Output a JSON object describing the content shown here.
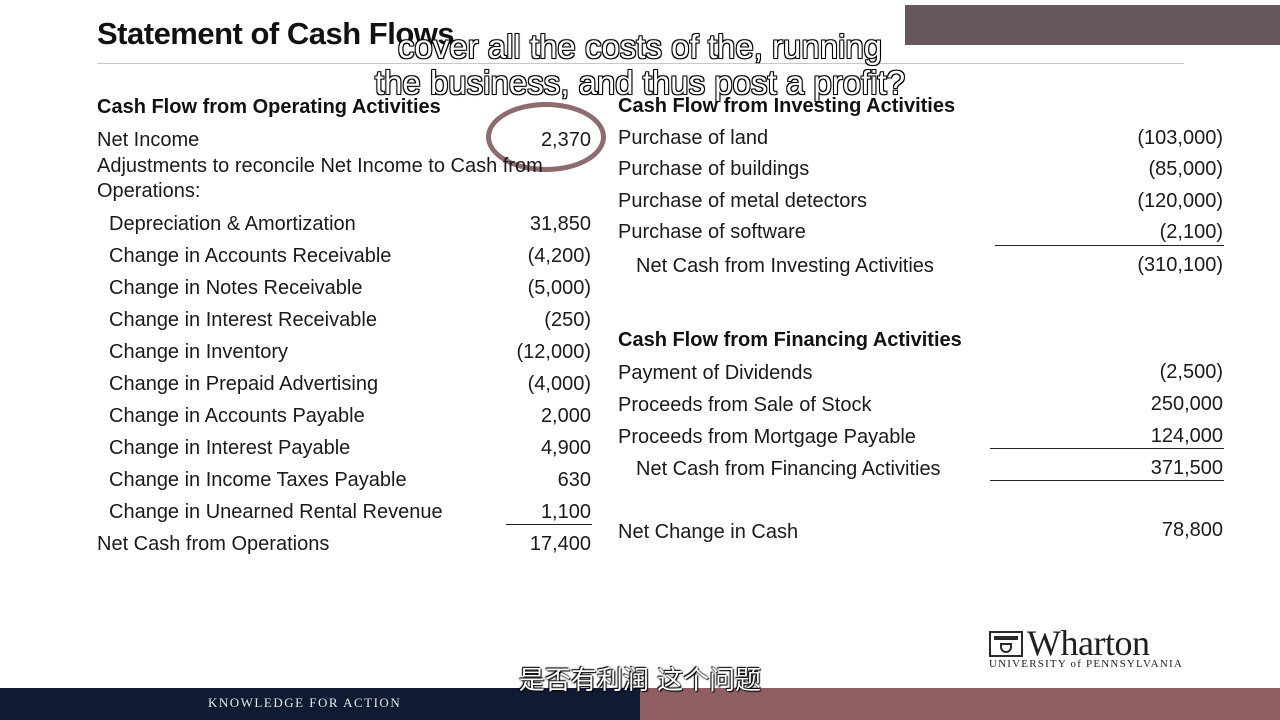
{
  "slide": {
    "title": "Statement of Cash Flows",
    "caption_line1": "cover all the costs of the, running",
    "caption_line2": "the business, and thus post a profit?",
    "cn_subtitle": "是否有利润 这个问题",
    "footer_text": "KNOWLEDGE FOR ACTION",
    "logo_word": "Wharton",
    "logo_sub": "UNIVERSITY of PENNSYLVANIA"
  },
  "operating": {
    "heading": "Cash Flow from Operating Activities",
    "net_income_label": "Net Income",
    "net_income_value": "2,370",
    "adjust_line1": "Adjustments to reconcile Net Income to Cash from",
    "adjust_line2": "Operations:",
    "items": [
      {
        "label": "Depreciation & Amortization",
        "value": "31,850"
      },
      {
        "label": "Change in Accounts Receivable",
        "value": "(4,200)"
      },
      {
        "label": "Change in Notes Receivable",
        "value": "(5,000)"
      },
      {
        "label": "Change in Interest Receivable",
        "value": "(250)"
      },
      {
        "label": "Change in Inventory",
        "value": "(12,000)"
      },
      {
        "label": "Change in Prepaid Advertising",
        "value": "(4,000)"
      },
      {
        "label": "Change in Accounts Payable",
        "value": "2,000"
      },
      {
        "label": "Change in Interest Payable",
        "value": "4,900"
      },
      {
        "label": "Change in Income Taxes Payable",
        "value": "630"
      },
      {
        "label": "Change in Unearned Rental Revenue",
        "value": "1,100"
      }
    ],
    "total_label": "Net Cash from Operations",
    "total_value": "17,400"
  },
  "investing": {
    "heading": "Cash Flow from Investing Activities",
    "items": [
      {
        "label": "Purchase of land",
        "value": "(103,000)"
      },
      {
        "label": "Purchase of buildings",
        "value": "(85,000)"
      },
      {
        "label": "Purchase of metal detectors",
        "value": "(120,000)"
      },
      {
        "label": "Purchase of software",
        "value": "(2,100)"
      }
    ],
    "total_label": "Net Cash from Investing Activities",
    "total_value": "(310,100)"
  },
  "financing": {
    "heading": "Cash Flow from Financing Activities",
    "items": [
      {
        "label": "Payment of Dividends",
        "value": "(2,500)"
      },
      {
        "label": "Proceeds from Sale of Stock",
        "value": "250,000"
      },
      {
        "label": "Proceeds from Mortgage Payable",
        "value": "124,000"
      }
    ],
    "total_label": "Net Cash from Financing Activities",
    "total_value": "371,500"
  },
  "net_change": {
    "label": "Net Change in Cash",
    "value": "78,800"
  },
  "colors": {
    "footer_navy": "#0f1a33",
    "footer_rose": "#8f5e62",
    "highlight_circle": "#8c6c6f"
  }
}
